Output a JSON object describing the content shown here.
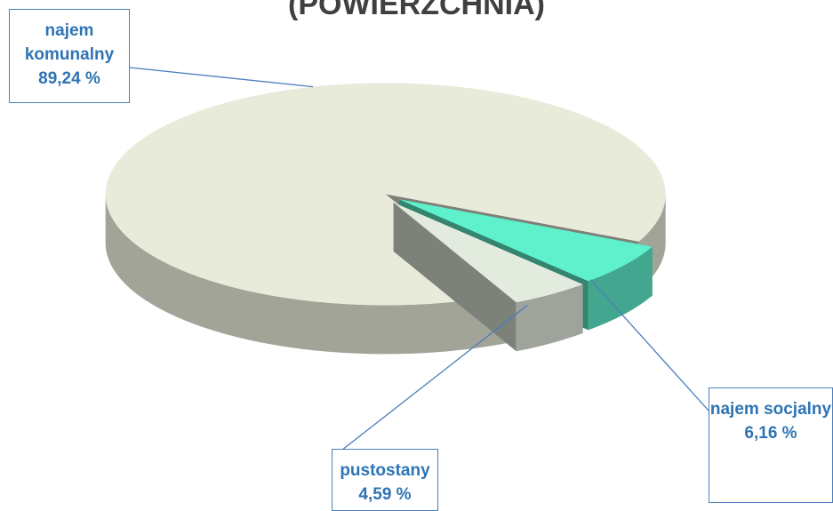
{
  "chart_data": {
    "type": "pie",
    "title": "(POWIERZCHNIA)",
    "categories": [
      "najem komunalny",
      "najem socjalny",
      "pustostany"
    ],
    "values": [
      89.24,
      6.16,
      4.59
    ],
    "value_labels": [
      "89,24 %",
      "6,16 %",
      "4,59 %"
    ],
    "colors": [
      "#e8ebda",
      "#5ff0cc",
      "#e2ebde"
    ]
  }
}
